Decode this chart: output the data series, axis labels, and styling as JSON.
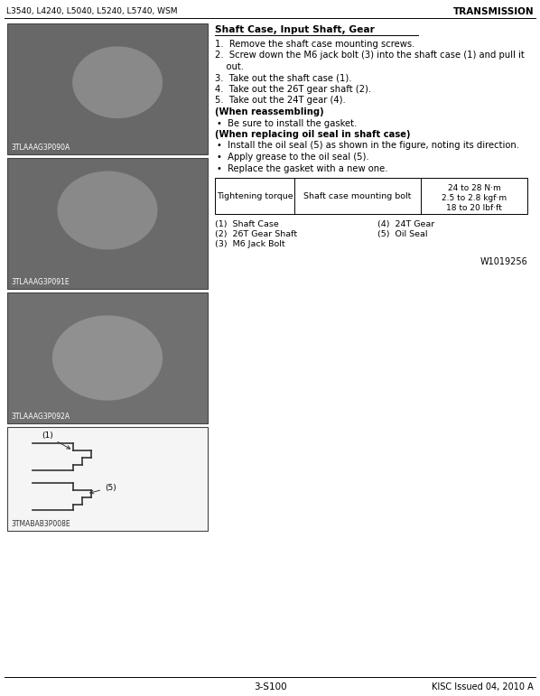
{
  "header_left": "L3540, L4240, L5040, L5240, L5740, WSM",
  "header_right": "TRANSMISSION",
  "title": "Shaft Case, Input Shaft, Gear",
  "steps": [
    "1.  Remove the shaft case mounting screws.",
    "2.  Screw down the M6 jack bolt (3) into the shaft case (1) and pull it\n    out.",
    "3.  Take out the shaft case (1).",
    "4.  Take out the 26T gear shaft (2).",
    "5.  Take out the 24T gear (4)."
  ],
  "reassemble_header": "(When reassembling)",
  "reassemble_bullets": [
    "•  Be sure to install the gasket."
  ],
  "oil_seal_header": "(When replacing oil seal in shaft case)",
  "oil_seal_bullets": [
    "•  Install the oil seal (5) as shown in the figure, noting its direction.",
    "•  Apply grease to the oil seal (5).",
    "•  Replace the gasket with a new one."
  ],
  "table_col1": "Tightening torque",
  "table_col2": "Shaft case mounting bolt",
  "table_col3": "24 to 28 N·m\n2.5 to 2.8 kgf·m\n18 to 20 lbf·ft",
  "parts_left": [
    "(1)  Shaft Case",
    "(2)  26T Gear Shaft",
    "(3)  M6 Jack Bolt"
  ],
  "parts_right": [
    "(4)  24T Gear",
    "(5)  Oil Seal"
  ],
  "ref_number": "W1019256",
  "img1_label": "3TLAAAG3P090A",
  "img2_label": "3TLAAAG3P091E",
  "img3_label": "3TLAAAG3P092A",
  "img4_label": "3TMABAB3P008E",
  "footer_left": "3-S100",
  "footer_right": "KISC Issued 04, 2010 A",
  "bg_color": "#ffffff",
  "text_color": "#000000",
  "header_line_color": "#000000",
  "table_border_color": "#000000",
  "img_photo_color": "#787878",
  "img_draw_color": "#f0f0f0"
}
